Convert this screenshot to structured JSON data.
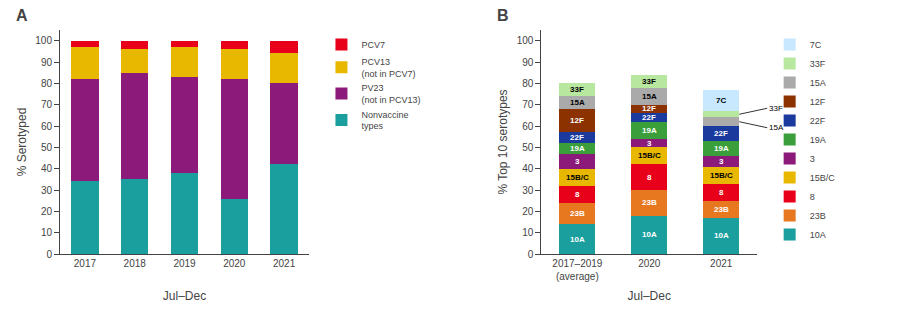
{
  "chart_data": [
    {
      "type": "bar",
      "title": "A",
      "stacked": true,
      "grid": false,
      "legend": "right",
      "categories": [
        "2017",
        "2018",
        "2019",
        "2020",
        "2021"
      ],
      "xlabel": "Jul–Dec",
      "ylabel": "% Serotyped",
      "ylim": [
        0,
        105
      ],
      "yticks": [
        0,
        10,
        20,
        30,
        40,
        50,
        60,
        70,
        80,
        90,
        100
      ],
      "series": [
        {
          "name": "Nonvaccine\ntypes",
          "color": "#1a9e9e",
          "values": [
            34,
            35,
            38,
            26,
            42
          ]
        },
        {
          "name": "PV23\n(not in PCV13)",
          "color": "#8B1A7A",
          "values": [
            48,
            50,
            45,
            56,
            38
          ]
        },
        {
          "name": "PCV13\n(not in PCV7)",
          "color": "#E8B800",
          "values": [
            15,
            11,
            14,
            14,
            14
          ]
        },
        {
          "name": "PCV7",
          "color": "#E8001A",
          "values": [
            3,
            4,
            3,
            4,
            6
          ]
        }
      ]
    },
    {
      "type": "bar",
      "title": "B",
      "stacked": true,
      "grid": false,
      "legend": "right",
      "categories": [
        "2017–2019\n(average)",
        "2020",
        "2021"
      ],
      "xlabel": "Jul–Dec",
      "ylabel": "% Top 10 serotypes",
      "ylim": [
        0,
        105
      ],
      "yticks": [
        0,
        10,
        20,
        30,
        40,
        50,
        60,
        70,
        80,
        90,
        100
      ],
      "series": [
        {
          "name": "10A",
          "color": "#1a9e9e",
          "values": [
            14,
            18,
            17
          ],
          "segment_labels": [
            "10A",
            "10A",
            "10A"
          ]
        },
        {
          "name": "23B",
          "color": "#E87820",
          "values": [
            10,
            12,
            8
          ],
          "segment_labels": [
            "23B",
            "23B",
            "23B"
          ]
        },
        {
          "name": "8",
          "color": "#E8001A",
          "values": [
            8,
            12,
            8
          ],
          "segment_labels": [
            "8",
            "8",
            "8"
          ]
        },
        {
          "name": "15B/C",
          "color": "#E8B800",
          "values": [
            8,
            8,
            8
          ],
          "segment_labels": [
            "15B/C",
            "15B/C",
            "15B/C"
          ]
        },
        {
          "name": "3",
          "color": "#8B1A7A",
          "values": [
            7,
            4,
            5
          ],
          "segment_labels": [
            "3",
            "3",
            "3"
          ]
        },
        {
          "name": "19A",
          "color": "#3a9e3a",
          "values": [
            5,
            8,
            7
          ],
          "segment_labels": [
            "19A",
            "19A",
            "19A"
          ]
        },
        {
          "name": "22F",
          "color": "#1a3a9e",
          "values": [
            5,
            4,
            7
          ],
          "segment_labels": [
            "22F",
            "22F",
            "22F"
          ]
        },
        {
          "name": "12F",
          "color": "#8B3200",
          "values": [
            11,
            4,
            null
          ],
          "segment_labels": [
            "12F",
            "12F",
            null
          ]
        },
        {
          "name": "15A",
          "color": "#aaaaaa",
          "values": [
            6,
            8,
            4
          ],
          "segment_labels": [
            "15A",
            "15A",
            null
          ]
        },
        {
          "name": "33F",
          "color": "#b8e8a0",
          "values": [
            6,
            6,
            3
          ],
          "segment_labels": [
            "33F",
            "33F",
            null
          ]
        },
        {
          "name": "7C",
          "color": "#c8e8ff",
          "values": [
            null,
            null,
            10
          ],
          "segment_labels": [
            null,
            null,
            "7C"
          ]
        }
      ],
      "annotations": [
        {
          "text": "33F",
          "category": "2021",
          "series": "33F"
        },
        {
          "text": "15A",
          "category": "2021",
          "series": "15A"
        }
      ]
    }
  ]
}
